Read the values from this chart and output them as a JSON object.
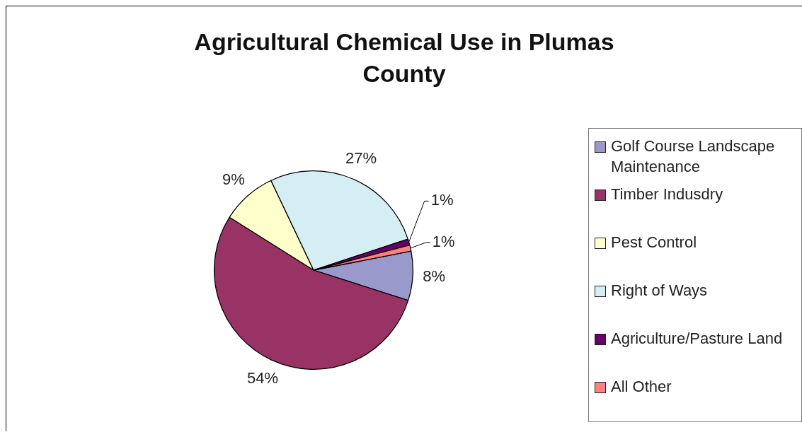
{
  "chart_data": {
    "type": "pie",
    "title": "Agricultural Chemical Use in Plumas County",
    "categories": [
      "Golf Course Landscape Maintenance",
      "Timber Indusdry",
      "Pest Control",
      "Right of Ways",
      "Agriculture/Pasture Land",
      "All Other"
    ],
    "values": [
      8,
      54,
      9,
      27,
      1,
      1
    ],
    "value_labels": [
      "8%",
      "54%",
      "9%",
      "27%",
      "1%",
      "1%"
    ],
    "colors": [
      "#9999cc",
      "#993366",
      "#ffffcc",
      "#d4eef4",
      "#660066",
      "#ff8080"
    ],
    "legend": "right"
  }
}
